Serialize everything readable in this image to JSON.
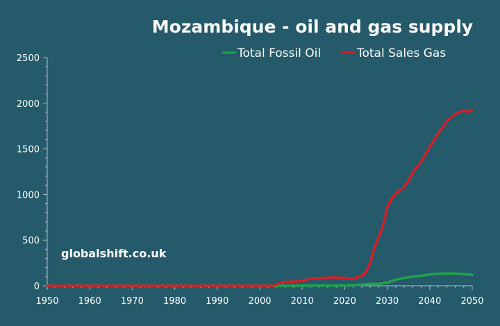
{
  "chart_data": {
    "type": "line",
    "title": "Mozambique - oil and gas supply",
    "watermark": "globalshift.co.uk",
    "xlabel": "",
    "ylabel": "",
    "xlim": [
      1950,
      2050
    ],
    "ylim": [
      0,
      2500
    ],
    "x_ticks": [
      1950,
      1960,
      1970,
      1980,
      1990,
      2000,
      2010,
      2020,
      2030,
      2040,
      2050
    ],
    "y_ticks": [
      0,
      500,
      1000,
      1500,
      2000,
      2500
    ],
    "legend_position": "top-right",
    "grid": false,
    "background_color": "#255a6b",
    "axis_color": "#a9c3cb",
    "series": [
      {
        "name": "Total Fossil Oil",
        "color": "#1fa34a",
        "points": [
          [
            1950,
            0
          ],
          [
            2004,
            0
          ],
          [
            2020,
            3
          ],
          [
            2022,
            5
          ],
          [
            2024,
            12
          ],
          [
            2026,
            20
          ],
          [
            2028,
            22
          ],
          [
            2030,
            35
          ],
          [
            2032,
            65
          ],
          [
            2034,
            85
          ],
          [
            2036,
            100
          ],
          [
            2038,
            110
          ],
          [
            2040,
            125
          ],
          [
            2042,
            132
          ],
          [
            2044,
            135
          ],
          [
            2046,
            135
          ],
          [
            2048,
            128
          ],
          [
            2050,
            120
          ]
        ]
      },
      {
        "name": "Total Sales Gas",
        "color": "#d81f26",
        "points": [
          [
            1950,
            0
          ],
          [
            2003,
            0
          ],
          [
            2004,
            15
          ],
          [
            2005,
            35
          ],
          [
            2006,
            42
          ],
          [
            2008,
            45
          ],
          [
            2010,
            50
          ],
          [
            2011,
            65
          ],
          [
            2012,
            80
          ],
          [
            2014,
            85
          ],
          [
            2016,
            88
          ],
          [
            2018,
            92
          ],
          [
            2020,
            85
          ],
          [
            2022,
            75
          ],
          [
            2024,
            110
          ],
          [
            2025,
            150
          ],
          [
            2026,
            250
          ],
          [
            2027,
            420
          ],
          [
            2028,
            530
          ],
          [
            2029,
            660
          ],
          [
            2030,
            860
          ],
          [
            2031,
            950
          ],
          [
            2032,
            1010
          ],
          [
            2034,
            1080
          ],
          [
            2035,
            1150
          ],
          [
            2036,
            1240
          ],
          [
            2038,
            1360
          ],
          [
            2040,
            1520
          ],
          [
            2042,
            1670
          ],
          [
            2044,
            1800
          ],
          [
            2046,
            1880
          ],
          [
            2048,
            1920
          ],
          [
            2049,
            1905
          ],
          [
            2050,
            1920
          ]
        ]
      }
    ]
  }
}
